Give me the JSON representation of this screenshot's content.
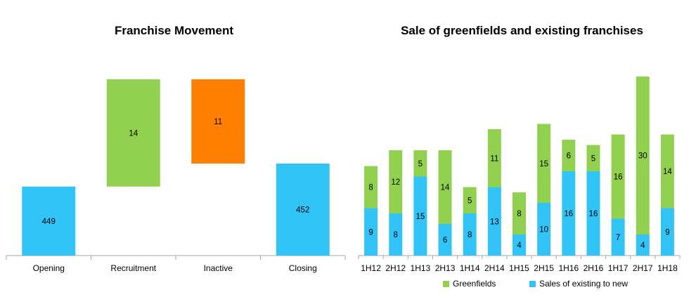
{
  "colors": {
    "blue": "#33c4f7",
    "green": "#92d050",
    "orange": "#ff7f00",
    "axis": "#a6a6a6",
    "text": "#000000"
  },
  "chart_data": [
    {
      "type": "bar",
      "subtype": "waterfall",
      "title": "Franchise Movement",
      "categories": [
        "Opening",
        "Recruitment",
        "Inactive",
        "Closing"
      ],
      "values": [
        449,
        14,
        -11,
        452
      ],
      "data_labels": [
        "449",
        "14",
        "11",
        "452"
      ],
      "bar_colors": [
        "#33c4f7",
        "#92d050",
        "#ff7f00",
        "#33c4f7"
      ]
    },
    {
      "type": "bar",
      "subtype": "stacked",
      "title": "Sale of greenfields and existing franchises",
      "categories": [
        "1H12",
        "2H12",
        "1H13",
        "2H13",
        "1H14",
        "2H14",
        "1H15",
        "2H15",
        "1H16",
        "2H16",
        "1H17",
        "2H17",
        "1H18"
      ],
      "series": [
        {
          "name": "Sales of existing to new",
          "color": "#33c4f7",
          "values": [
            9,
            8,
            15,
            6,
            8,
            13,
            4,
            10,
            16,
            16,
            7,
            4,
            9
          ]
        },
        {
          "name": "Greenfields",
          "color": "#92d050",
          "values": [
            8,
            12,
            5,
            14,
            5,
            11,
            8,
            15,
            6,
            5,
            16,
            30,
            14
          ]
        }
      ],
      "legend_position": "bottom",
      "legend_order": [
        "Greenfields",
        "Sales of existing to new"
      ],
      "grid": false
    }
  ]
}
